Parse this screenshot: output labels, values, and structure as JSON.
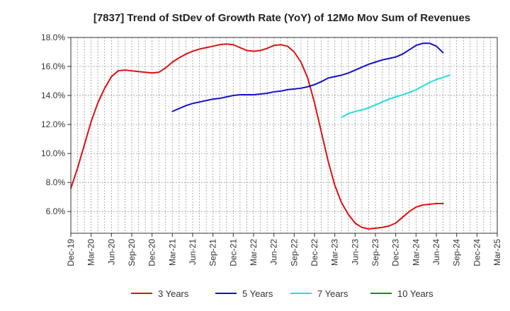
{
  "chart_data": {
    "type": "line",
    "title": "[7837]  Trend of StDev of Growth Rate (YoY) of 12Mo Mov Sum of Revenues",
    "xlabel": "",
    "ylabel": "",
    "ylim": [
      4.5,
      18.0
    ],
    "yticks": [
      6.0,
      8.0,
      10.0,
      12.0,
      14.0,
      16.0,
      18.0
    ],
    "ytick_labels": [
      "6.0%",
      "8.0%",
      "10.0%",
      "12.0%",
      "14.0%",
      "16.0%",
      "18.0%"
    ],
    "x_tick_labels": [
      "Dec-19",
      "Mar-20",
      "Jun-20",
      "Sep-20",
      "Dec-20",
      "Mar-21",
      "Jun-21",
      "Sep-21",
      "Dec-21",
      "Mar-22",
      "Jun-22",
      "Sep-22",
      "Dec-22",
      "Mar-23",
      "Jun-23",
      "Sep-23",
      "Dec-23",
      "Mar-24",
      "Jun-24",
      "Sep-24",
      "Dec-24",
      "Mar-25"
    ],
    "x_count": 64,
    "grid": true,
    "legend_position": "bottom",
    "series": [
      {
        "name": "3 Years",
        "color": "#dd1111",
        "start": 0,
        "values": [
          7.6,
          9.0,
          10.6,
          12.2,
          13.5,
          14.5,
          15.3,
          15.7,
          15.75,
          15.7,
          15.65,
          15.6,
          15.55,
          15.6,
          15.9,
          16.3,
          16.6,
          16.85,
          17.05,
          17.2,
          17.3,
          17.4,
          17.5,
          17.55,
          17.5,
          17.3,
          17.1,
          17.05,
          17.1,
          17.25,
          17.45,
          17.5,
          17.4,
          17.0,
          16.3,
          15.2,
          13.5,
          11.5,
          9.5,
          7.8,
          6.6,
          5.8,
          5.2,
          4.9,
          4.8,
          4.85,
          4.9,
          5.0,
          5.2,
          5.6,
          6.0,
          6.3,
          6.45,
          6.5,
          6.55,
          6.55
        ]
      },
      {
        "name": "5 Years",
        "color": "#1111cc",
        "start": 15,
        "values": [
          12.9,
          13.1,
          13.3,
          13.45,
          13.55,
          13.65,
          13.75,
          13.8,
          13.9,
          14.0,
          14.05,
          14.05,
          14.05,
          14.1,
          14.15,
          14.25,
          14.3,
          14.4,
          14.45,
          14.5,
          14.6,
          14.75,
          14.95,
          15.2,
          15.3,
          15.4,
          15.55,
          15.75,
          15.95,
          16.15,
          16.3,
          16.45,
          16.55,
          16.65,
          16.85,
          17.15,
          17.45,
          17.6,
          17.6,
          17.4,
          16.95
        ]
      },
      {
        "name": "7 Years",
        "color": "#22dddd",
        "start": 40,
        "values": [
          12.5,
          12.75,
          12.9,
          13.0,
          13.15,
          13.35,
          13.55,
          13.75,
          13.9,
          14.05,
          14.2,
          14.4,
          14.65,
          14.9,
          15.1,
          15.25,
          15.4
        ]
      },
      {
        "name": "10 Years",
        "color": "#228822",
        "start": 0,
        "values": []
      }
    ]
  }
}
